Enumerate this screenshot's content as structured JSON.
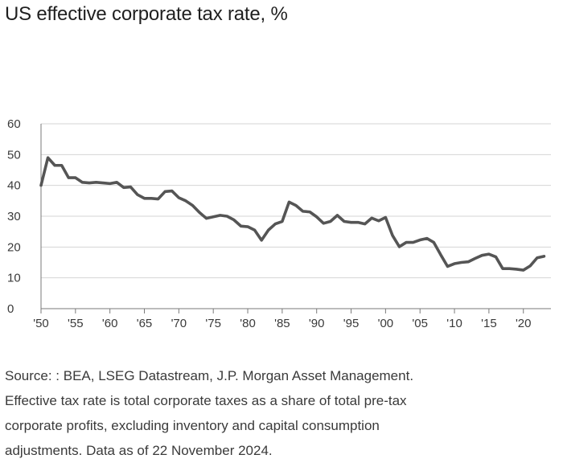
{
  "header": {
    "title": "US effective corporate tax rate, %"
  },
  "chart_data": {
    "type": "line",
    "title": "US effective corporate tax rate, %",
    "xlabel": "",
    "ylabel": "",
    "xlim": [
      1950,
      2024
    ],
    "ylim": [
      0,
      60
    ],
    "y_ticks": [
      0,
      10,
      20,
      30,
      40,
      50,
      60
    ],
    "x_ticks": [
      1950,
      1955,
      1960,
      1965,
      1970,
      1975,
      1980,
      1985,
      1990,
      1995,
      2000,
      2005,
      2010,
      2015,
      2020
    ],
    "x_tick_labels": [
      "'50",
      "'55",
      "'60",
      "'65",
      "'70",
      "'75",
      "'80",
      "'85",
      "'90",
      "'95",
      "'00",
      "'05",
      "'10",
      "'15",
      "'20"
    ],
    "grid": true,
    "color": "#555555",
    "series": [
      {
        "name": "Effective corporate tax rate",
        "x": [
          1950,
          1951,
          1952,
          1953,
          1954,
          1955,
          1956,
          1957,
          1958,
          1959,
          1960,
          1961,
          1962,
          1963,
          1964,
          1965,
          1966,
          1967,
          1968,
          1969,
          1970,
          1971,
          1972,
          1973,
          1974,
          1975,
          1976,
          1977,
          1978,
          1979,
          1980,
          1981,
          1982,
          1983,
          1984,
          1985,
          1986,
          1987,
          1988,
          1989,
          1990,
          1991,
          1992,
          1993,
          1994,
          1995,
          1996,
          1997,
          1998,
          1999,
          2000,
          2001,
          2002,
          2003,
          2004,
          2005,
          2006,
          2007,
          2008,
          2009,
          2010,
          2011,
          2012,
          2013,
          2014,
          2015,
          2016,
          2017,
          2018,
          2019,
          2020,
          2021,
          2022,
          2023
        ],
        "values": [
          40,
          49,
          46.5,
          46.5,
          42.5,
          42.5,
          41,
          40.8,
          41,
          40.8,
          40.6,
          41,
          39.3,
          39.5,
          37,
          35.8,
          35.8,
          35.6,
          38,
          38.2,
          36,
          35,
          33.5,
          31.2,
          29.3,
          29.8,
          30.3,
          30,
          28.8,
          26.8,
          26.6,
          25.5,
          22.2,
          25.5,
          27.5,
          28.3,
          34.6,
          33.5,
          31.6,
          31.4,
          29.8,
          27.7,
          28.3,
          30.3,
          28.3,
          28,
          28,
          27.5,
          29.4,
          28.5,
          29.6,
          23.8,
          20.1,
          21.5,
          21.5,
          22.3,
          22.8,
          21.5,
          17.5,
          13.7,
          14.6,
          15,
          15.2,
          16.3,
          17.3,
          17.7,
          16.8,
          13,
          13,
          12.8,
          12.5,
          13.9,
          16.5,
          17
        ]
      }
    ]
  },
  "footer": {
    "source": "Source: : BEA, LSEG Datastream, J.P. Morgan Asset Management.",
    "note_line1": "Effective tax rate is total corporate taxes as a share of total pre-tax",
    "note_line2": "corporate profits, excluding inventory and capital consumption",
    "note_line3": "adjustments. Data as of 22 November 2024."
  }
}
